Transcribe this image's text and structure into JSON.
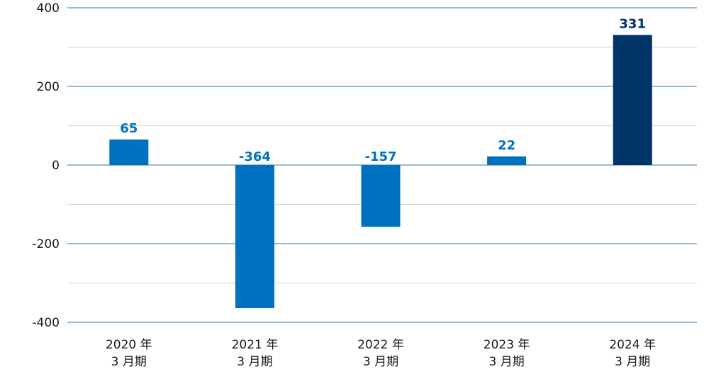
{
  "chart_data": {
    "type": "bar",
    "categories": [
      [
        "2020 年",
        "3 月期"
      ],
      [
        "2021 年",
        "3 月期"
      ],
      [
        "2022 年",
        "3 月期"
      ],
      [
        "2023 年",
        "3 月期"
      ],
      [
        "2024 年",
        "3 月期"
      ]
    ],
    "values": [
      65,
      -364,
      -157,
      22,
      331
    ],
    "data_labels": [
      "65",
      "-364",
      "-157",
      "22",
      "331"
    ],
    "title": "",
    "xlabel": "",
    "ylabel": "",
    "ylim": [
      -400,
      400
    ],
    "yticks": [
      400,
      200,
      0,
      -200,
      -400
    ],
    "ytick_labels": [
      "400",
      "200",
      "0",
      "-200",
      "-400"
    ],
    "grid": true,
    "colors": {
      "bar": "#0070c0",
      "highlight_bar": "#003366",
      "label": "#0070c0",
      "highlight_label": "#003366",
      "major_grid": "#2e75b6",
      "minor_grid": "#d0d0d0"
    },
    "highlight_index": 4
  }
}
